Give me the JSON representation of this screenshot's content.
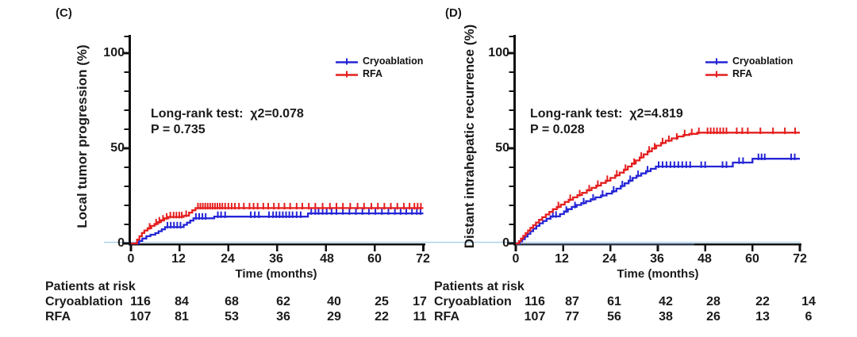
{
  "style": {
    "axis_color": "#101010",
    "text_color": "#1a1a1a",
    "baseline_color": "#a8cde8",
    "axis_overlay_color": "#46607f",
    "cryoablation_color": "#2525d6",
    "rfa_color": "#e51f1f"
  },
  "chart_data": [
    {
      "type": "line",
      "subtype": "kaplan-meier-cumulative-incidence",
      "panel_tag": "(C)",
      "ylabel": "Local tumor progression (%)",
      "xlabel": "Time (months)",
      "xlim": [
        0,
        72
      ],
      "ylim": [
        0,
        110
      ],
      "x_ticks": [
        0,
        12,
        24,
        36,
        48,
        60,
        72
      ],
      "y_ticks": [
        0,
        50,
        100
      ],
      "grid": false,
      "legend_position": "upper-right",
      "annotations": [
        "Long-rank test:  χ2=0.078",
        "P = 0.735"
      ],
      "series": [
        {
          "name": "Cryoablation",
          "color": "#2525d6",
          "steps": [
            [
              0,
              0
            ],
            [
              2,
              1.3
            ],
            [
              2.8,
              2.6
            ],
            [
              3.8,
              3.8
            ],
            [
              4.8,
              4.6
            ],
            [
              6,
              5.4
            ],
            [
              6.8,
              6.4
            ],
            [
              7.6,
              7.4
            ],
            [
              8.4,
              8.6
            ],
            [
              13,
              9.8
            ],
            [
              13.8,
              10.9
            ],
            [
              14.6,
              12
            ],
            [
              15.4,
              13.2
            ],
            [
              20.5,
              14.1
            ],
            [
              43.6,
              15.8
            ],
            [
              72,
              15.8
            ]
          ],
          "censors": [
            9,
            9.8,
            10.6,
            11.4,
            12.2,
            16,
            16.8,
            17.6,
            18.4,
            21.4,
            22.2,
            23.2,
            29.5,
            30.5,
            31.5,
            34,
            35,
            35.8,
            36.6,
            37.4,
            38.2,
            39,
            39.8,
            40.8,
            41.8,
            44.4,
            45.4,
            46.2,
            47.2,
            48.2,
            49.4,
            50.6,
            52.2,
            53.8,
            55.4,
            57,
            58.6,
            60.2,
            61.8,
            63.4,
            65,
            66.4,
            67.8,
            69.2,
            70.4,
            71.3
          ]
        },
        {
          "name": "RFA",
          "color": "#e51f1f",
          "steps": [
            [
              0,
              0
            ],
            [
              1.5,
              2
            ],
            [
              2.1,
              3.8
            ],
            [
              2.7,
              5.5
            ],
            [
              3.3,
              6.8
            ],
            [
              4.1,
              8
            ],
            [
              5,
              9.2
            ],
            [
              5.8,
              10.2
            ],
            [
              6.6,
              11.2
            ],
            [
              7.4,
              12.2
            ],
            [
              8.2,
              13.2
            ],
            [
              9.2,
              13.9
            ],
            [
              13,
              14.6
            ],
            [
              14.3,
              16.2
            ],
            [
              15.1,
              17.4
            ],
            [
              15.9,
              18.6
            ],
            [
              72,
              18.6
            ]
          ],
          "censors": [
            4.6,
            6.2,
            7,
            7.9,
            8.8,
            9.7,
            10.5,
            11.2,
            11.9,
            12.5,
            13.6,
            16.5,
            17.1,
            17.7,
            18.3,
            18.9,
            19.5,
            20.1,
            20.7,
            21.3,
            21.9,
            22.5,
            23.2,
            24,
            24.8,
            25.6,
            26.6,
            27.8,
            29.2,
            30.2,
            31.2,
            32.6,
            33.8,
            35.2,
            36.4,
            37.8,
            39.2,
            40.8,
            42.2,
            43.8,
            45.4,
            47.2,
            49,
            50.6,
            52.2,
            54,
            55.8,
            57.4,
            59.2,
            60.8,
            62.4,
            64,
            65.6,
            67.2,
            68.6,
            69.8,
            70.6,
            71.4
          ]
        }
      ],
      "patients_at_risk": {
        "title": "Patients at risk",
        "time_points": [
          0,
          12,
          24,
          36,
          48,
          60,
          72
        ],
        "rows": [
          {
            "label": "Cryoablation",
            "counts": [
              116,
              84,
              68,
              62,
              40,
              25,
              17
            ]
          },
          {
            "label": "RFA",
            "counts": [
              107,
              81,
              53,
              36,
              29,
              22,
              11
            ]
          }
        ]
      }
    },
    {
      "type": "line",
      "subtype": "kaplan-meier-cumulative-incidence",
      "panel_tag": "(D)",
      "ylabel": "Distant intrahepatic recurrence (%)",
      "xlabel": "Time (months)",
      "xlim": [
        0,
        72
      ],
      "ylim": [
        0,
        110
      ],
      "x_ticks": [
        0,
        12,
        24,
        36,
        48,
        60,
        72
      ],
      "y_ticks": [
        0,
        50,
        100
      ],
      "grid": false,
      "legend_position": "upper-right",
      "annotations": [
        "Long-rank test:  χ2=4.819",
        "P = 0.028"
      ],
      "series": [
        {
          "name": "Cryoablation",
          "color": "#2525d6",
          "steps": [
            [
              0,
              0
            ],
            [
              1,
              1
            ],
            [
              1.6,
              2.2
            ],
            [
              2.3,
              3.6
            ],
            [
              3,
              5
            ],
            [
              3.7,
              6.4
            ],
            [
              4.4,
              7.8
            ],
            [
              5.2,
              9.2
            ],
            [
              6,
              10.6
            ],
            [
              6.9,
              11.8
            ],
            [
              7.8,
              13
            ],
            [
              8.8,
              14.2
            ],
            [
              11.2,
              15.4
            ],
            [
              12.2,
              16.8
            ],
            [
              13.2,
              18
            ],
            [
              14.2,
              19.2
            ],
            [
              15.4,
              20.2
            ],
            [
              16.6,
              21.2
            ],
            [
              17.8,
              22.2
            ],
            [
              19,
              23.2
            ],
            [
              20.2,
              24.2
            ],
            [
              21.6,
              25.2
            ],
            [
              23,
              26.2
            ],
            [
              24.4,
              27.4
            ],
            [
              25.5,
              28.8
            ],
            [
              26.6,
              30.2
            ],
            [
              27.6,
              31.6
            ],
            [
              28.6,
              33
            ],
            [
              29.6,
              34.4
            ],
            [
              30.6,
              35.6
            ],
            [
              31.8,
              36.8
            ],
            [
              33,
              38
            ],
            [
              34.2,
              39.2
            ],
            [
              35.5,
              40.4
            ],
            [
              55,
              42.5
            ],
            [
              60,
              44.5
            ],
            [
              72,
              44.5
            ]
          ],
          "censors": [
            9.4,
            10.2,
            12.8,
            15,
            17.2,
            19.6,
            22,
            24.8,
            27,
            29,
            31,
            33.4,
            36.2,
            37.2,
            38.2,
            39.2,
            40.2,
            41.2,
            42.2,
            43.2,
            44.2,
            47,
            48,
            52.4,
            53.4,
            56.6,
            57.6,
            61.5,
            62.3,
            63.1,
            69.8,
            70.7
          ]
        },
        {
          "name": "RFA",
          "color": "#e51f1f",
          "steps": [
            [
              0,
              0
            ],
            [
              0.8,
              1.2
            ],
            [
              1.3,
              2.6
            ],
            [
              1.9,
              4
            ],
            [
              2.5,
              5.4
            ],
            [
              3.1,
              6.8
            ],
            [
              3.7,
              8.2
            ],
            [
              4.4,
              9.6
            ],
            [
              5.1,
              11
            ],
            [
              5.9,
              12.4
            ],
            [
              6.7,
              13.8
            ],
            [
              7.6,
              15.2
            ],
            [
              8.5,
              16.6
            ],
            [
              9.4,
              18
            ],
            [
              10.4,
              19.2
            ],
            [
              11.4,
              20.4
            ],
            [
              12.4,
              21.8
            ],
            [
              13.4,
              23
            ],
            [
              14.5,
              24.2
            ],
            [
              15.6,
              25.4
            ],
            [
              16.8,
              26.6
            ],
            [
              18,
              28
            ],
            [
              19.2,
              29.2
            ],
            [
              20.4,
              30.4
            ],
            [
              21.6,
              31.8
            ],
            [
              22.8,
              33
            ],
            [
              24,
              34.4
            ],
            [
              25.2,
              35.8
            ],
            [
              26.3,
              37.2
            ],
            [
              27.4,
              38.8
            ],
            [
              28.4,
              40.4
            ],
            [
              29.4,
              42
            ],
            [
              30.4,
              43.6
            ],
            [
              31.4,
              45.2
            ],
            [
              32.4,
              46.8
            ],
            [
              33.4,
              48.4
            ],
            [
              34.5,
              50
            ],
            [
              35.6,
              51.4
            ],
            [
              36.8,
              52.8
            ],
            [
              38,
              54
            ],
            [
              39.5,
              55.2
            ],
            [
              41,
              56.2
            ],
            [
              42.5,
              57
            ],
            [
              44,
              57.6
            ],
            [
              46,
              58.2
            ],
            [
              72,
              58.2
            ]
          ],
          "censors": [
            10.8,
            13.8,
            16.2,
            18.6,
            20.8,
            23.2,
            25.6,
            27.8,
            30,
            31.8,
            33.8,
            35.2,
            37.2,
            38.8,
            40.8,
            42.8,
            44.6,
            46.4,
            48.6,
            49.4,
            50.2,
            51,
            51.8,
            52.6,
            53.4,
            56,
            57.4,
            58.8,
            62,
            65.2,
            68.2,
            70.8
          ]
        }
      ],
      "patients_at_risk": {
        "title": "Patients at risk",
        "time_points": [
          0,
          12,
          24,
          36,
          48,
          60,
          72
        ],
        "rows": [
          {
            "label": "Cryoablation",
            "counts": [
              116,
              87,
              61,
              42,
              28,
              22,
              14
            ]
          },
          {
            "label": "RFA",
            "counts": [
              107,
              77,
              56,
              38,
              26,
              13,
              6
            ]
          }
        ]
      }
    }
  ]
}
